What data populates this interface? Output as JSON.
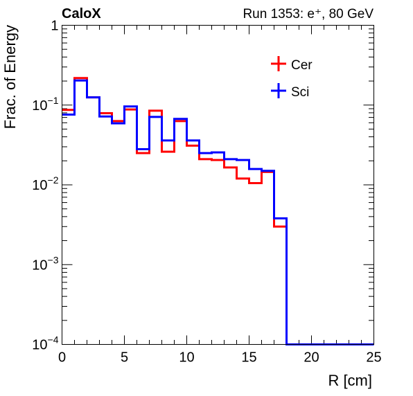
{
  "chart_data": {
    "type": "line",
    "title": "CaloX",
    "subtitle": "Run 1353: e⁺, 80 GeV",
    "xlabel": "R [cm]",
    "ylabel": "Frac. of Energy",
    "xlim": [
      0,
      25
    ],
    "ylim": [
      0.0001,
      1
    ],
    "yscale": "log",
    "step": true,
    "grid": false,
    "legend_position": "top-right",
    "x_ticks": [
      {
        "value": 0,
        "label": "0"
      },
      {
        "value": 5,
        "label": "5"
      },
      {
        "value": 10,
        "label": "10"
      },
      {
        "value": 15,
        "label": "15"
      },
      {
        "value": 20,
        "label": "20"
      },
      {
        "value": 25,
        "label": "25"
      }
    ],
    "y_ticks": [
      {
        "value": 1,
        "base": "1",
        "exp": ""
      },
      {
        "value": 0.1,
        "base": "10",
        "exp": "−1"
      },
      {
        "value": 0.01,
        "base": "10",
        "exp": "−2"
      },
      {
        "value": 0.001,
        "base": "10",
        "exp": "−3"
      },
      {
        "value": 0.0001,
        "base": "10",
        "exp": "−4"
      }
    ],
    "bin_edges": [
      0,
      1,
      2,
      3,
      4,
      5,
      6,
      7,
      8,
      9,
      10,
      11,
      12,
      13,
      14,
      15,
      16,
      17,
      18,
      19,
      20,
      21,
      22,
      23,
      24,
      25
    ],
    "series": [
      {
        "name": "Cer",
        "color": "#ff0000",
        "values": [
          0.087,
          0.218,
          0.125,
          0.079,
          0.063,
          0.088,
          0.025,
          0.085,
          0.026,
          0.063,
          0.031,
          0.021,
          0.0205,
          0.0165,
          0.012,
          0.0105,
          0.0145,
          0.003,
          0,
          0,
          0,
          0,
          0,
          0,
          0
        ]
      },
      {
        "name": "Sci",
        "color": "#0000ff",
        "values": [
          0.076,
          0.203,
          0.125,
          0.072,
          0.059,
          0.096,
          0.028,
          0.071,
          0.036,
          0.067,
          0.036,
          0.025,
          0.0255,
          0.021,
          0.0205,
          0.0158,
          0.015,
          0.0038,
          0,
          0,
          0,
          0,
          0,
          0,
          0
        ]
      }
    ]
  }
}
